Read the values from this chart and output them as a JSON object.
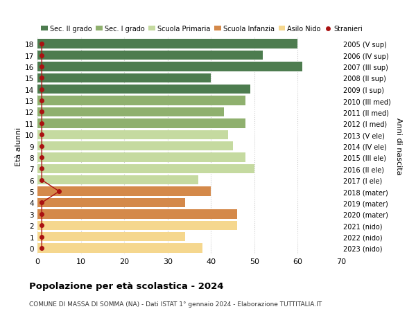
{
  "ages": [
    0,
    1,
    2,
    3,
    4,
    5,
    6,
    7,
    8,
    9,
    10,
    11,
    12,
    13,
    14,
    15,
    16,
    17,
    18
  ],
  "values": [
    38,
    34,
    46,
    46,
    34,
    40,
    37,
    50,
    48,
    45,
    44,
    48,
    43,
    48,
    49,
    40,
    61,
    52,
    60
  ],
  "right_labels": [
    "2023 (nido)",
    "2022 (nido)",
    "2021 (nido)",
    "2020 (mater)",
    "2019 (mater)",
    "2018 (mater)",
    "2017 (I ele)",
    "2016 (II ele)",
    "2015 (III ele)",
    "2014 (IV ele)",
    "2013 (V ele)",
    "2012 (I med)",
    "2011 (II med)",
    "2010 (III med)",
    "2009 (I sup)",
    "2008 (II sup)",
    "2007 (III sup)",
    "2006 (IV sup)",
    "2005 (V sup)"
  ],
  "bar_colors": [
    "#f5d78e",
    "#f5d78e",
    "#f5d78e",
    "#d4894a",
    "#d4894a",
    "#d4894a",
    "#c5daa0",
    "#c5daa0",
    "#c5daa0",
    "#c5daa0",
    "#c5daa0",
    "#8fb06e",
    "#8fb06e",
    "#8fb06e",
    "#4d7c4f",
    "#4d7c4f",
    "#4d7c4f",
    "#4d7c4f",
    "#4d7c4f"
  ],
  "stranieri_values": [
    1,
    1,
    1,
    1,
    1,
    5,
    1,
    1,
    1,
    1,
    1,
    1,
    1,
    1,
    1,
    1,
    1,
    1,
    1
  ],
  "legend_labels": [
    "Sec. II grado",
    "Sec. I grado",
    "Scuola Primaria",
    "Scuola Infanzia",
    "Asilo Nido",
    "Stranieri"
  ],
  "legend_colors": [
    "#4d7c4f",
    "#8fb06e",
    "#c5daa0",
    "#d4894a",
    "#f5d78e",
    "#aa1111"
  ],
  "title": "Popolazione per età scolastica - 2024",
  "subtitle": "COMUNE DI MASSA DI SOMMA (NA) - Dati ISTAT 1° gennaio 2024 - Elaborazione TUTTITALIA.IT",
  "ylabel_left": "Età alunni",
  "ylabel_right": "Anni di nascita",
  "xlim": [
    0,
    70
  ],
  "xticks": [
    0,
    10,
    20,
    30,
    40,
    50,
    60,
    70
  ],
  "bg_color": "#ffffff",
  "grid_color": "#cccccc",
  "bar_height": 0.82
}
